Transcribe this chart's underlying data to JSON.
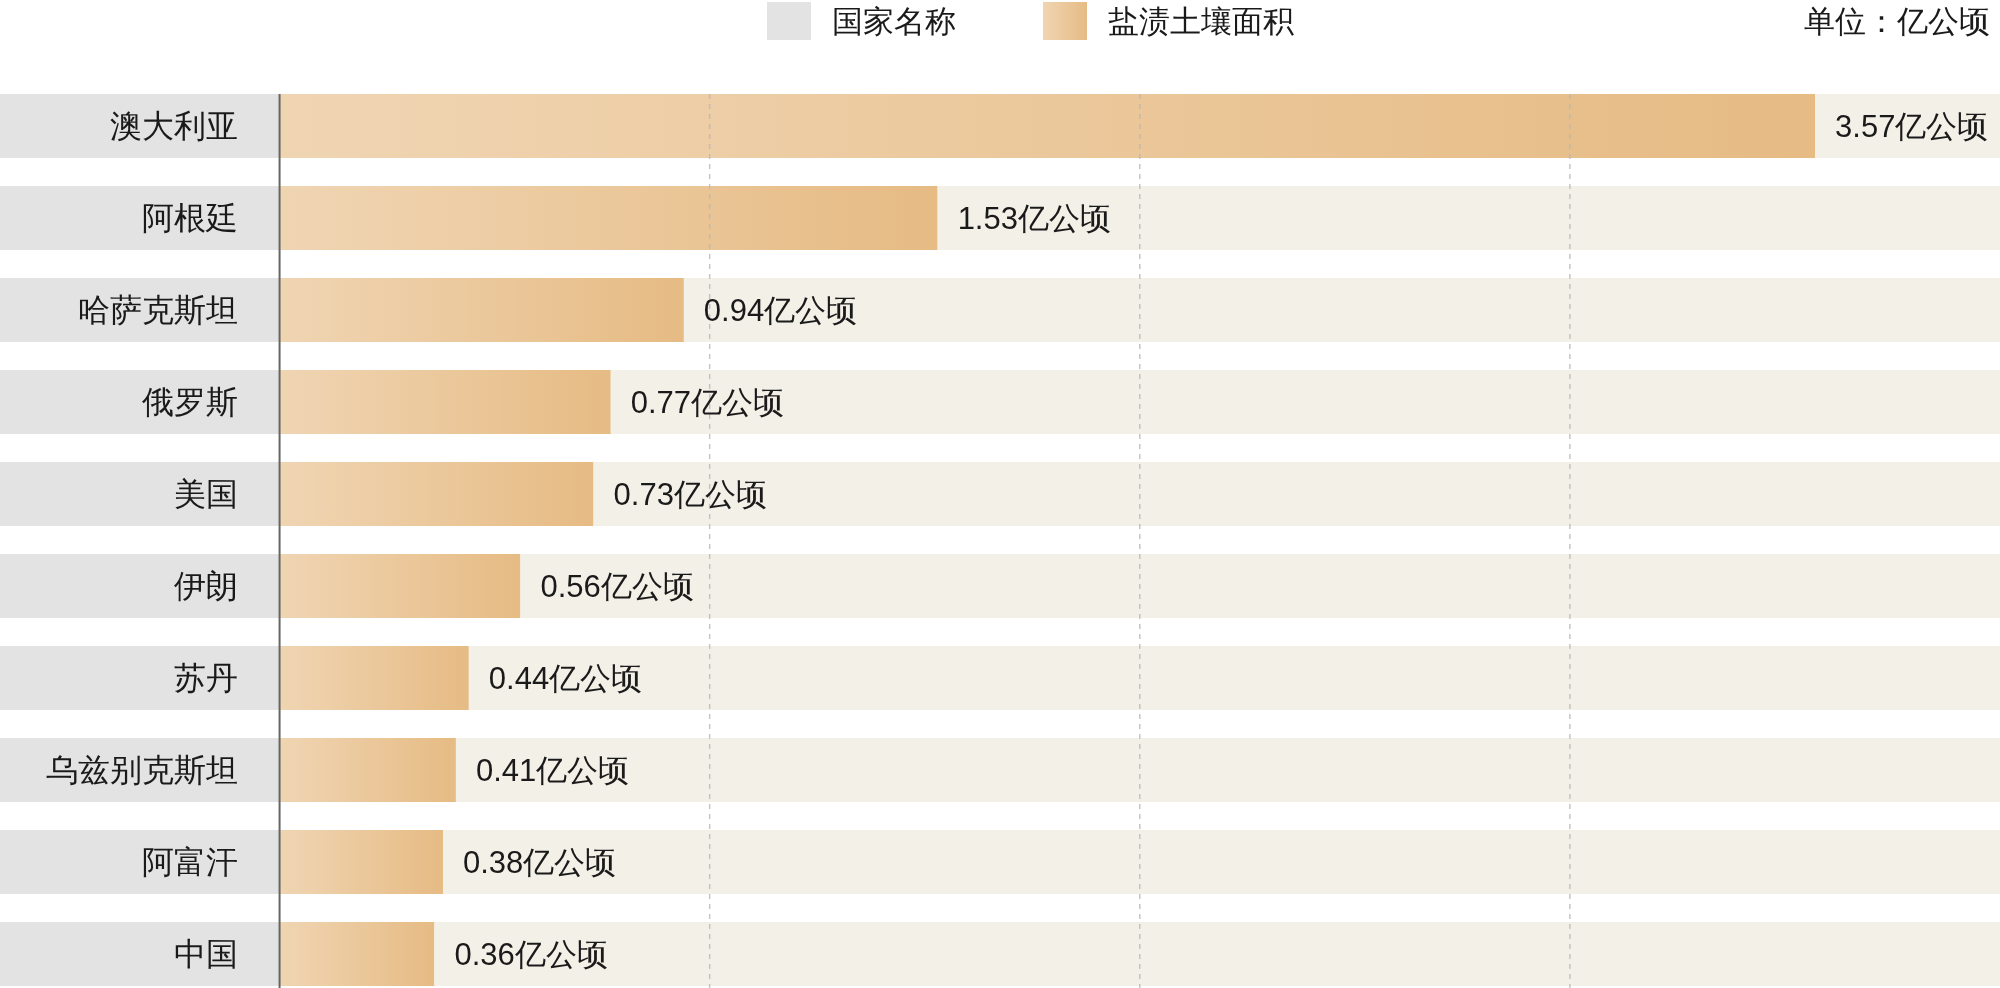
{
  "chart_data": {
    "type": "bar",
    "orientation": "horizontal",
    "stacked": true,
    "categories": [
      "澳大利亚",
      "阿根廷",
      "哈萨克斯坦",
      "俄罗斯",
      "美国",
      "伊朗",
      "苏丹",
      "乌兹别克斯坦",
      "阿富汗",
      "中国"
    ],
    "series": [
      {
        "name": "国家名称",
        "color": "#e3e3e3",
        "values": [
          -0.65,
          -0.65,
          -0.65,
          -0.65,
          -0.65,
          -0.65,
          -0.65,
          -0.65,
          -0.65,
          -0.65
        ]
      },
      {
        "name": "盐渍土壤面积",
        "color": "#e6bb84",
        "values": [
          3.57,
          1.53,
          0.94,
          0.77,
          0.73,
          0.56,
          0.44,
          0.41,
          0.38,
          0.36
        ],
        "value_labels": [
          "3.57亿公顷",
          "1.53亿公顷",
          "0.94亿公顷",
          "0.77亿公顷",
          "0.73亿公顷",
          "0.56亿公顷",
          "0.44亿公顷",
          "0.41亿公顷",
          "0.38亿公顷",
          "0.36亿公顷"
        ]
      },
      {
        "color": "#f3f0e8",
        "values": [
          0.43,
          2.47,
          3.06,
          3.23,
          3.27,
          3.44,
          3.56,
          3.59,
          3.62,
          3.64
        ]
      }
    ],
    "xlim": [
      -0.65,
      4
    ],
    "xticks": [
      {
        "value": 1,
        "label": null
      },
      {
        "value": 2,
        "label": null
      },
      {
        "value": 3,
        "label": null
      }
    ],
    "grid": "x",
    "tick_labels": "y",
    "legend": "top",
    "annotations": [
      "单位：亿公顷"
    ]
  }
}
